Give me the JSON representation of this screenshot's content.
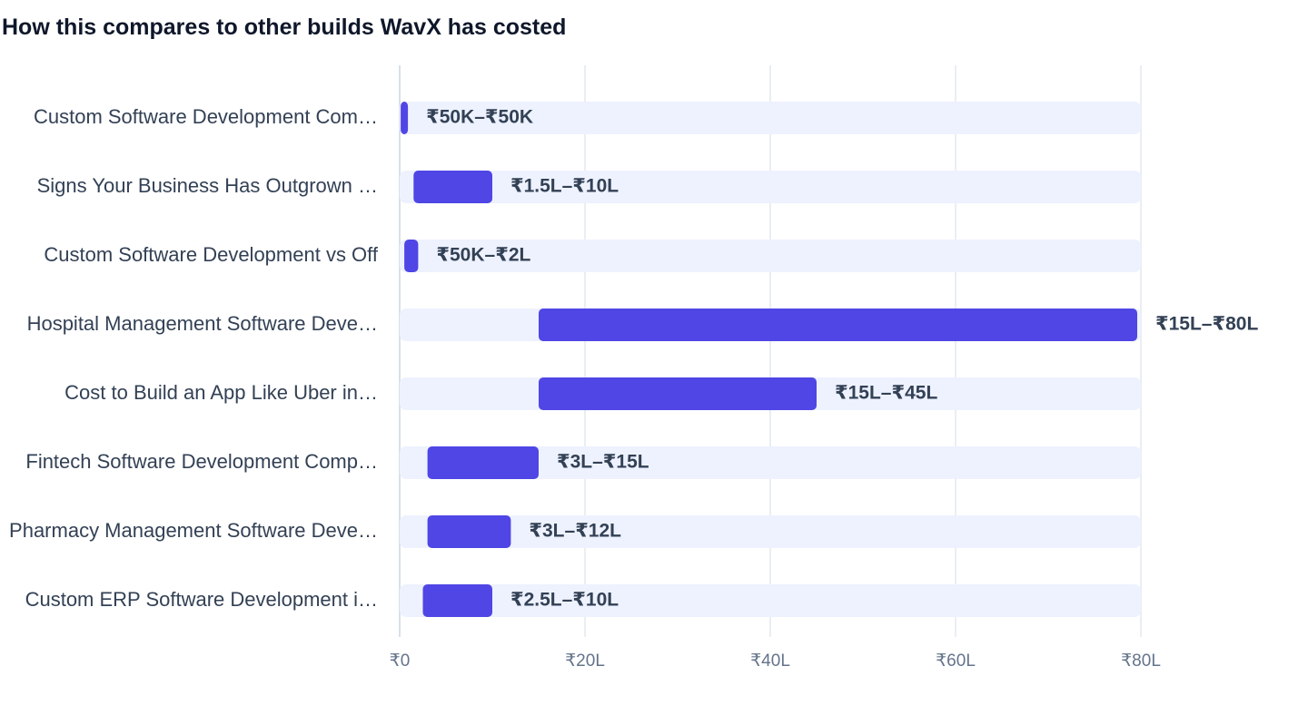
{
  "chart_data": {
    "type": "bar",
    "title": "How this compares to other builds WavX has costed",
    "xlim": [
      0,
      80
    ],
    "x_unit": "₹ lakh",
    "grid": true,
    "xticks": [
      {
        "value": 0,
        "label": "₹0"
      },
      {
        "value": 20,
        "label": "₹20L"
      },
      {
        "value": 40,
        "label": "₹40L"
      },
      {
        "value": 60,
        "label": "₹60L"
      },
      {
        "value": 80,
        "label": "₹80L"
      }
    ],
    "colors": {
      "bar": "#4f46e5",
      "track": "#eef2ff",
      "grid": "#e2e8f0",
      "axis": "#cbd5e1"
    },
    "rows": [
      {
        "label": "Custom Software Development Com…",
        "low": 0.5,
        "high": 0.5,
        "range_label": "₹50K–₹50K"
      },
      {
        "label": "Signs Your Business Has Outgrown …",
        "low": 1.5,
        "high": 10,
        "range_label": "₹1.5L–₹10L"
      },
      {
        "label": "Custom Software Development vs Off",
        "low": 0.5,
        "high": 2,
        "range_label": "₹50K–₹2L"
      },
      {
        "label": "Hospital Management Software Deve…",
        "low": 15,
        "high": 80,
        "range_label": "₹15L–₹80L"
      },
      {
        "label": "Cost to Build an App Like Uber in…",
        "low": 15,
        "high": 45,
        "range_label": "₹15L–₹45L"
      },
      {
        "label": "Fintech Software Development Comp…",
        "low": 3,
        "high": 15,
        "range_label": "₹3L–₹15L"
      },
      {
        "label": "Pharmacy Management Software Deve…",
        "low": 3,
        "high": 12,
        "range_label": "₹3L–₹12L"
      },
      {
        "label": "Custom ERP Software Development i…",
        "low": 2.5,
        "high": 10,
        "range_label": "₹2.5L–₹10L"
      }
    ]
  }
}
